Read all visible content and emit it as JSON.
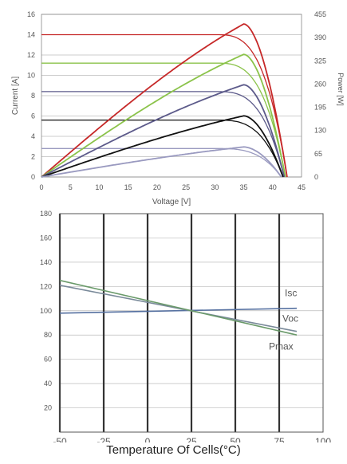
{
  "chart_data": [
    {
      "type": "line",
      "xlabel": "Voltage [V]",
      "ylabel": "Current [A]",
      "y2label": "Power [W]",
      "xlim": [
        0,
        45
      ],
      "ylim": [
        0,
        16
      ],
      "y2lim": [
        0,
        455
      ],
      "xticks": [
        "0",
        "5",
        "10",
        "15",
        "20",
        "25",
        "30",
        "35",
        "40",
        "45"
      ],
      "yticks": [
        "0",
        "2",
        "4",
        "6",
        "8",
        "10",
        "12",
        "14",
        "16"
      ],
      "y2ticks": [
        "0",
        "65",
        "130",
        "195",
        "260",
        "325",
        "390",
        "455"
      ],
      "grid": "horizontal",
      "iv_curves": [
        {
          "color": "#c62828",
          "isc": 14.0,
          "voc": 42.5,
          "knee": 30
        },
        {
          "color": "#8bc34a",
          "isc": 11.2,
          "voc": 42.2,
          "knee": 30
        },
        {
          "color": "#5c5a8a",
          "isc": 8.4,
          "voc": 42.0,
          "knee": 30
        },
        {
          "color": "#111111",
          "isc": 5.6,
          "voc": 41.8,
          "knee": 30
        },
        {
          "color": "#9a9ac0",
          "isc": 2.8,
          "voc": 41.5,
          "knee": 30
        }
      ],
      "pv_curves": [
        {
          "color": "#c62828",
          "pmax": 428,
          "vmp": 35,
          "voc": 42.5
        },
        {
          "color": "#8bc34a",
          "pmax": 343,
          "vmp": 35,
          "voc": 42.2
        },
        {
          "color": "#5c5a8a",
          "pmax": 258,
          "vmp": 35,
          "voc": 42.0
        },
        {
          "color": "#111111",
          "pmax": 171,
          "vmp": 35,
          "voc": 41.8
        },
        {
          "color": "#9a9ac0",
          "pmax": 84,
          "vmp": 35,
          "voc": 41.5
        }
      ]
    },
    {
      "type": "line",
      "xlabel": "Temperature Of Cells(°C)",
      "ylabel": "",
      "xlim": [
        -50,
        100
      ],
      "ylim": [
        0,
        180
      ],
      "xticks": [
        "-50",
        "-25",
        "0",
        "25",
        "50",
        "75",
        "100"
      ],
      "yticks": [
        "20",
        "40",
        "60",
        "80",
        "100",
        "120",
        "140",
        "160",
        "180"
      ],
      "grid": "both",
      "series": [
        {
          "name": "Isc",
          "x": [
            -50,
            85
          ],
          "y": [
            98,
            102
          ],
          "color": "#5570a0"
        },
        {
          "name": "Voc",
          "x": [
            -50,
            85
          ],
          "y": [
            121,
            83
          ],
          "color": "#7a8a9a"
        },
        {
          "name": "Pmax",
          "x": [
            -50,
            85
          ],
          "y": [
            125,
            80
          ],
          "color": "#6a9a6a"
        }
      ]
    }
  ]
}
